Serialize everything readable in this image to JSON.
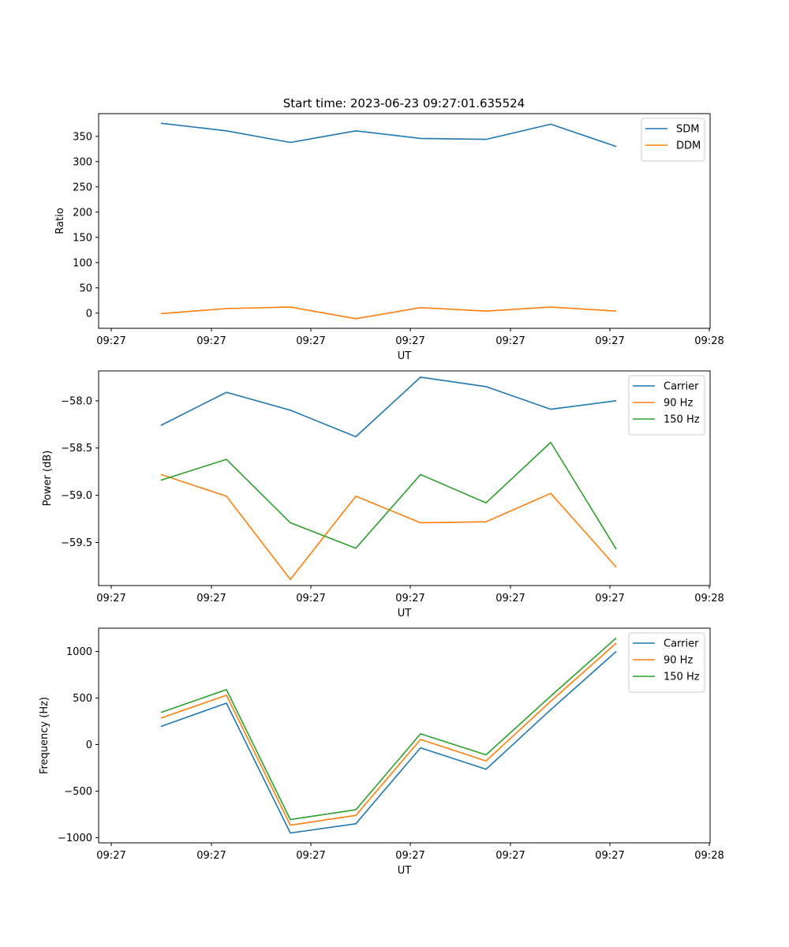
{
  "figure": {
    "title": "Start time: 2023-06-23 09:27:01.635524"
  },
  "colors": {
    "blue": "#1f77b4",
    "orange": "#ff7f0e",
    "green": "#2ca02c"
  },
  "chart_data": [
    {
      "type": "line",
      "title": "Start time: 2023-06-23 09:27:01.635524",
      "xlabel": "UT",
      "ylabel": "Ratio",
      "x": [
        1,
        2,
        3,
        4,
        5,
        6,
        7,
        8
      ],
      "x_tick_labels": [
        "09:27",
        "09:27",
        "09:27",
        "09:27",
        "09:27",
        "09:27",
        "09:28"
      ],
      "y_ticks": [
        0,
        50,
        100,
        150,
        200,
        250,
        300,
        350
      ],
      "ylim": [
        -30,
        395
      ],
      "legend": "top-right",
      "grid": false,
      "series": [
        {
          "name": "SDM",
          "color": "#1f77b4",
          "values": [
            376,
            361,
            338,
            361,
            346,
            344,
            374,
            330
          ]
        },
        {
          "name": "DDM",
          "color": "#ff7f0e",
          "values": [
            -1,
            9,
            12,
            -11,
            11,
            4,
            12,
            4
          ]
        }
      ]
    },
    {
      "type": "line",
      "title": "",
      "xlabel": "UT",
      "ylabel": "Power (dB)",
      "x": [
        1,
        2,
        3,
        4,
        5,
        6,
        7,
        8
      ],
      "x_tick_labels": [
        "09:27",
        "09:27",
        "09:27",
        "09:27",
        "09:27",
        "09:27",
        "09:28"
      ],
      "y_ticks": [
        -59.5,
        -59.0,
        -58.5,
        -58.0
      ],
      "y_tick_labels": [
        "−59.5",
        "−59.0",
        "−58.5",
        "−58.0"
      ],
      "ylim": [
        -59.955,
        -57.684
      ],
      "legend": "top-right",
      "grid": false,
      "series": [
        {
          "name": "Carrier",
          "color": "#1f77b4",
          "values": [
            -58.26,
            -57.91,
            -58.1,
            -58.38,
            -57.75,
            -57.85,
            -58.09,
            -58.0
          ]
        },
        {
          "name": "90 Hz",
          "color": "#ff7f0e",
          "values": [
            -58.78,
            -59.01,
            -59.89,
            -59.01,
            -59.29,
            -59.28,
            -58.98,
            -59.76
          ]
        },
        {
          "name": "150 Hz",
          "color": "#2ca02c",
          "values": [
            -58.84,
            -58.62,
            -59.29,
            -59.56,
            -58.78,
            -59.08,
            -58.44,
            -59.57
          ]
        }
      ]
    },
    {
      "type": "line",
      "title": "",
      "xlabel": "UT",
      "ylabel": "Frequency (Hz)",
      "x": [
        1,
        2,
        3,
        4,
        5,
        6,
        7,
        8
      ],
      "x_tick_labels": [
        "09:27",
        "09:27",
        "09:27",
        "09:27",
        "09:27",
        "09:27",
        "09:28"
      ],
      "y_ticks": [
        -1000,
        -500,
        0,
        500,
        1000
      ],
      "y_tick_labels": [
        "−1000",
        "−500",
        "0",
        "500",
        "1000"
      ],
      "ylim": [
        -1055,
        1250
      ],
      "legend": "top-right",
      "grid": false,
      "series": [
        {
          "name": "Carrier",
          "color": "#1f77b4",
          "values": [
            195,
            445,
            -950,
            -850,
            -35,
            -265,
            375,
            1000
          ]
        },
        {
          "name": "90 Hz",
          "color": "#ff7f0e",
          "values": [
            285,
            530,
            -865,
            -760,
            55,
            -175,
            465,
            1090
          ]
        },
        {
          "name": "150 Hz",
          "color": "#2ca02c",
          "values": [
            345,
            590,
            -805,
            -700,
            115,
            -110,
            520,
            1145
          ]
        }
      ]
    }
  ]
}
